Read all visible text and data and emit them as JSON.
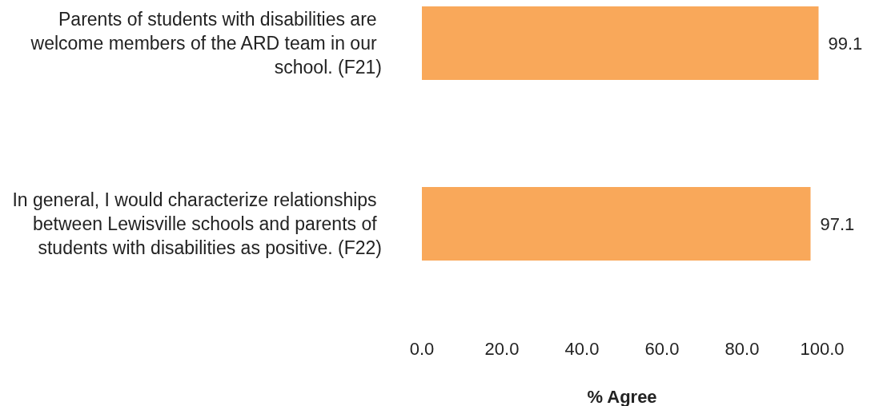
{
  "chart_data": {
    "type": "bar",
    "orientation": "horizontal",
    "categories": [
      "Parents of students with disabilities are welcome members of the ARD team in our school. (F21)",
      "In general, I would characterize relationships between Lewisville schools and parents of students with disabilities as positive. (F22)"
    ],
    "values": [
      99.1,
      97.1
    ],
    "color": "#f9a85a",
    "data_labels": true,
    "xlabel": "% Agree",
    "xlim": [
      0,
      100
    ],
    "xticks": [
      {
        "value": 0,
        "label": "0.0"
      },
      {
        "value": 20,
        "label": "20.0"
      },
      {
        "value": 40,
        "label": "40.0"
      },
      {
        "value": 60,
        "label": "60.0"
      },
      {
        "value": 80,
        "label": "80.0"
      },
      {
        "value": 100,
        "label": "100.0"
      }
    ],
    "grid": false
  }
}
